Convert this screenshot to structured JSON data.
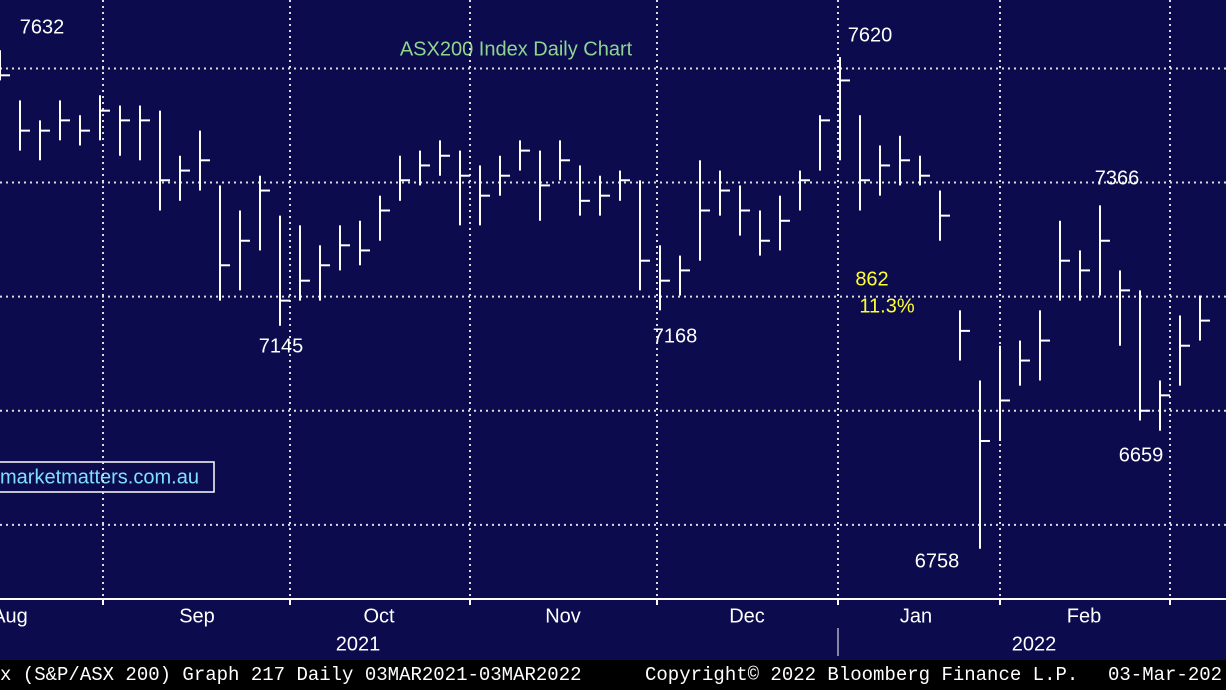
{
  "chart_data": {
    "type": "ohlc",
    "title": "ASX200 Index Daily Chart",
    "x": [
      0,
      2,
      4,
      6,
      8,
      10,
      12,
      14,
      16,
      18,
      20,
      22,
      24,
      26,
      28,
      30,
      32,
      34,
      36,
      38,
      40,
      42,
      44,
      46,
      48,
      50,
      52,
      54,
      56,
      58,
      60,
      62,
      64,
      66,
      68,
      70,
      72,
      74,
      76,
      78,
      80,
      82,
      84,
      86,
      88,
      90,
      92,
      94,
      96,
      98,
      100,
      102,
      104,
      106,
      108,
      110,
      112,
      114,
      116,
      118,
      120
    ],
    "high": [
      7632,
      7544,
      7509,
      7544,
      7518,
      7553,
      7535,
      7535,
      7526,
      7447,
      7491,
      7395,
      7351,
      7412,
      7342,
      7325,
      7290,
      7325,
      7333,
      7377,
      7447,
      7456,
      7474,
      7456,
      7430,
      7447,
      7474,
      7456,
      7474,
      7430,
      7412,
      7421,
      7404,
      7290,
      7272,
      7439,
      7421,
      7395,
      7351,
      7377,
      7421,
      7518,
      7620,
      7518,
      7465,
      7482,
      7447,
      7386,
      7176,
      7053,
      7114,
      7123,
      7176,
      7333,
      7281,
      7360,
      7246,
      7211,
      7053,
      7167,
      7202
    ],
    "low": [
      7579,
      7456,
      7439,
      7474,
      7465,
      7474,
      7447,
      7439,
      7351,
      7368,
      7386,
      7193,
      7211,
      7281,
      7149,
      7193,
      7193,
      7246,
      7255,
      7298,
      7368,
      7395,
      7412,
      7325,
      7325,
      7377,
      7421,
      7333,
      7404,
      7342,
      7342,
      7368,
      7211,
      7176,
      7202,
      7263,
      7342,
      7307,
      7272,
      7281,
      7351,
      7421,
      7439,
      7351,
      7377,
      7395,
      7395,
      7298,
      7088,
      6758,
      6947,
      7044,
      7053,
      7193,
      7193,
      7202,
      7114,
      6983,
      6965,
      7044,
      7123
    ],
    "close": [
      7588,
      7491,
      7491,
      7509,
      7491,
      7526,
      7509,
      7509,
      7404,
      7421,
      7439,
      7255,
      7298,
      7386,
      7193,
      7228,
      7255,
      7290,
      7281,
      7351,
      7404,
      7430,
      7447,
      7412,
      7377,
      7412,
      7456,
      7395,
      7439,
      7368,
      7377,
      7404,
      7263,
      7228,
      7246,
      7351,
      7386,
      7351,
      7298,
      7333,
      7404,
      7509,
      7579,
      7404,
      7430,
      7439,
      7412,
      7342,
      7140,
      6947,
      7018,
      7088,
      7123,
      7263,
      7246,
      7298,
      7211,
      7000,
      7027,
      7114,
      7158
    ],
    "color": "#ffffff",
    "xlim": [
      0,
      122.6
    ],
    "ylim": [
      6670,
      7720
    ],
    "ygrid": [
      6800,
      7000,
      7200,
      7400,
      7600
    ],
    "xgrid": [
      10.3,
      29,
      47,
      65.7,
      83.8,
      100,
      117
    ],
    "xticks": [
      {
        "value": 1,
        "label": "Aug"
      },
      {
        "value": 19.7,
        "label": "Sep"
      },
      {
        "value": 37.9,
        "label": "Oct"
      },
      {
        "value": 56.3,
        "label": "Nov"
      },
      {
        "value": 74.7,
        "label": "Dec"
      },
      {
        "value": 91.6,
        "label": "Jan"
      },
      {
        "value": 108.4,
        "label": "Feb"
      }
    ],
    "years": [
      {
        "value": 35.8,
        "label": "2021"
      },
      {
        "value": 103.4,
        "label": "2022"
      }
    ],
    "annotations": [
      "7632",
      "7145",
      "7168",
      "7620",
      "862",
      "11.3%",
      "7366",
      "6758",
      "6659"
    ],
    "watermark": "marketmatters.com.au",
    "footer": [
      "x (S&P/ASX 200) Graph 217  Daily 03MAR2021-03MAR2022",
      "Copyright© 2022 Bloomberg Finance L.P.",
      "03-Mar-202"
    ]
  }
}
